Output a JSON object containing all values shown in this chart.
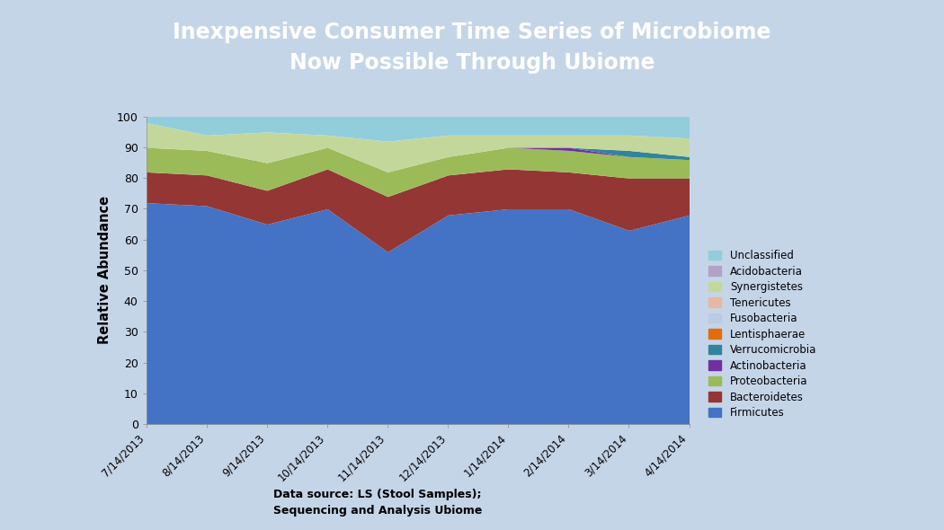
{
  "title_line1": "Inexpensive Consumer Time Series of Microbiome",
  "title_line2": "Now Possible Through Ubiome",
  "title_bg_color": "#1a4f9c",
  "title_text_color": "#ffffff",
  "ylabel": "Relative Abundance",
  "footer": "Data source: LS (Stool Samples);\nSequencing and Analysis Ubiome",
  "outer_bg_color": "#c5d5e8",
  "inner_bg_color": "#ffffff",
  "chart_bg": "#ffffff",
  "dates": [
    "7/14/2013",
    "8/14/2013",
    "9/14/2013",
    "10/14/2013",
    "11/14/2013",
    "12/14/2013",
    "1/14/2014",
    "2/14/2014",
    "3/14/2014",
    "4/14/2014"
  ],
  "series": {
    "Firmicutes": [
      72,
      71,
      65,
      70,
      56,
      68,
      70,
      70,
      63,
      68
    ],
    "Bacteroidetes": [
      10,
      10,
      11,
      13,
      18,
      13,
      13,
      12,
      17,
      12
    ],
    "Proteobacteria": [
      8,
      8,
      9,
      7,
      8,
      6,
      7,
      7,
      7,
      6
    ],
    "Actinobacteria": [
      0,
      0,
      0,
      0,
      0,
      0,
      0,
      1,
      0,
      0
    ],
    "Verrucomicrobia": [
      0,
      0,
      0,
      0,
      0,
      0,
      0,
      0,
      2,
      1
    ],
    "Lentisphaerae": [
      0,
      0,
      0,
      0,
      0,
      0,
      0,
      0,
      0,
      0
    ],
    "Fusobacteria": [
      0,
      0,
      0,
      0,
      0,
      0,
      0,
      0,
      0,
      0
    ],
    "Tenericutes": [
      0,
      0,
      0,
      0,
      0,
      0,
      0,
      0,
      0,
      0
    ],
    "Synergistetes": [
      8,
      5,
      10,
      4,
      10,
      7,
      4,
      4,
      5,
      6
    ],
    "Acidobacteria": [
      0,
      0,
      0,
      0,
      0,
      0,
      0,
      0,
      0,
      0
    ],
    "Unclassified": [
      2,
      6,
      5,
      6,
      8,
      6,
      6,
      6,
      6,
      7
    ]
  },
  "colors": {
    "Firmicutes": "#4472c4",
    "Bacteroidetes": "#943634",
    "Proteobacteria": "#9bbb59",
    "Actinobacteria": "#7030a0",
    "Verrucomicrobia": "#31849b",
    "Lentisphaerae": "#e46c0a",
    "Fusobacteria": "#b8cce4",
    "Tenericutes": "#e6b8a2",
    "Synergistetes": "#c4d79b",
    "Acidobacteria": "#b2a2c7",
    "Unclassified": "#92cddc"
  },
  "legend_order": [
    "Unclassified",
    "Acidobacteria",
    "Synergistetes",
    "Tenericutes",
    "Fusobacteria",
    "Lentisphaerae",
    "Verrucomicrobia",
    "Actinobacteria",
    "Proteobacteria",
    "Bacteroidetes",
    "Firmicutes"
  ],
  "stack_order": [
    "Firmicutes",
    "Bacteroidetes",
    "Proteobacteria",
    "Actinobacteria",
    "Verrucomicrobia",
    "Lentisphaerae",
    "Fusobacteria",
    "Tenericutes",
    "Synergistetes",
    "Acidobacteria",
    "Unclassified"
  ],
  "ylim": [
    0,
    100
  ],
  "yticks": [
    0,
    10,
    20,
    30,
    40,
    50,
    60,
    70,
    80,
    90,
    100
  ]
}
